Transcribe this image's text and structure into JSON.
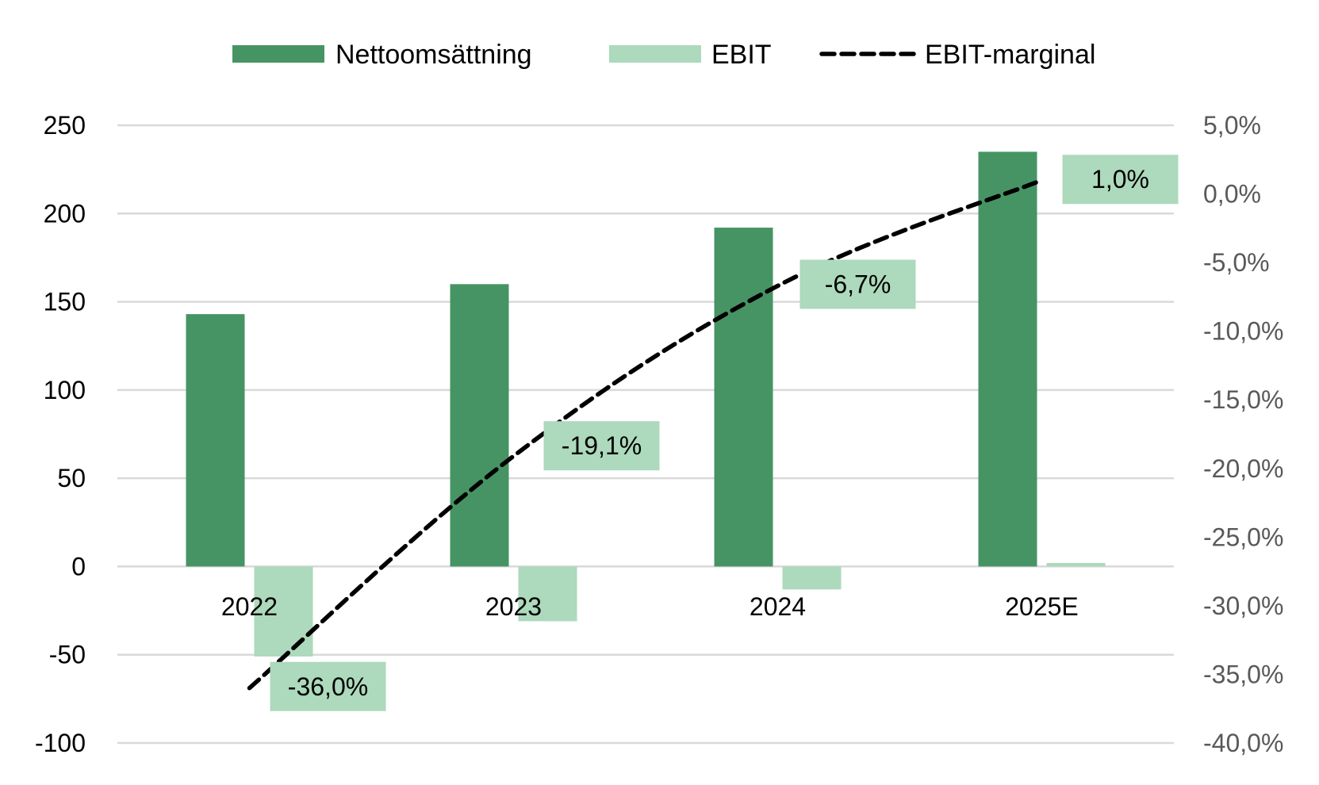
{
  "chart_data": {
    "type": "bar",
    "title": "",
    "categories": [
      "2022",
      "2023",
      "2024",
      "2025E"
    ],
    "series": [
      {
        "name": "Nettoomsättning",
        "kind": "bar",
        "axis": "left",
        "values": [
          143,
          160,
          192,
          235
        ]
      },
      {
        "name": "EBIT",
        "kind": "bar",
        "axis": "left",
        "values": [
          -51,
          -31,
          -13,
          2
        ]
      },
      {
        "name": "EBIT-marginal",
        "kind": "line",
        "style": "dashed",
        "axis": "right",
        "values": [
          -36.0,
          -19.1,
          -6.7,
          1.0
        ]
      }
    ],
    "data_labels": [
      "-36,0%",
      "-19,1%",
      "-6,7%",
      "1,0%"
    ],
    "y_left": {
      "min": -100,
      "max": 250,
      "ticks": [
        250,
        200,
        150,
        100,
        50,
        0,
        -50,
        -100
      ],
      "tick_labels": [
        "250",
        "200",
        "150",
        "100",
        "50",
        "0",
        "-50",
        "-100"
      ]
    },
    "y_right": {
      "min": -40,
      "max": 5,
      "ticks": [
        5,
        0,
        -5,
        -10,
        -15,
        -20,
        -25,
        -30,
        -35,
        -40
      ],
      "tick_labels": [
        "5,0%",
        "0,0%",
        "-5,0%",
        "-10,0%",
        "-15,0%",
        "-20,0%",
        "-25,0%",
        "-30,0%",
        "-35,0%",
        "-40,0%"
      ]
    },
    "gridlines": true,
    "legend_position": "top-center",
    "colors": {
      "Nettoomsättning": "#469464",
      "EBIT": "#add9bc",
      "EBIT-marginal": "#000000",
      "grid": "#d9d9d9",
      "label_box": "#add9bc"
    }
  }
}
